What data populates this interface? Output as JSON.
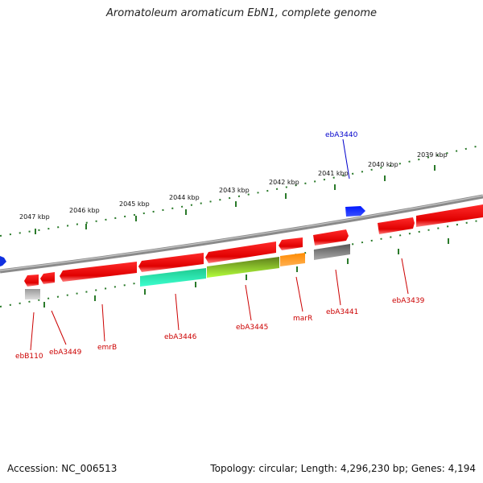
{
  "title": "Aromatoleum aromaticum EbN1, complete genome",
  "footer": {
    "accession": "Accession: NC_006513",
    "topology": "Topology: circular; Length: 4,296,230 bp; Genes: 4,194"
  },
  "scale_labels": [
    "2047 kbp",
    "2046 kbp",
    "2045 kbp",
    "2044 kbp",
    "2043 kbp",
    "2042 kbp",
    "2041 kbp",
    "2040 kbp",
    "2039 kbp"
  ],
  "genes": [
    {
      "name": "ebB110",
      "label": "ebB110",
      "color": "#cc0000"
    },
    {
      "name": "ebA3449",
      "label": "ebA3449",
      "color": "#cc0000"
    },
    {
      "name": "emrB",
      "label": "emrB",
      "color": "#cc0000"
    },
    {
      "name": "ebA3446",
      "label": "ebA3446",
      "color": "#cc0000"
    },
    {
      "name": "ebA3445",
      "label": "ebA3445",
      "color": "#cc0000"
    },
    {
      "name": "marR",
      "label": "marR",
      "color": "#cc0000"
    },
    {
      "name": "ebA3441",
      "label": "ebA3441",
      "color": "#cc0000"
    },
    {
      "name": "ebA3439",
      "label": "ebA3439",
      "color": "#cc0000"
    },
    {
      "name": "ebA3440",
      "label": "ebA3440",
      "color": "#0000cc"
    }
  ],
  "colors": {
    "backbone": "#8a8a8a",
    "forward_gene": "#ee1111",
    "reverse_gene": "#ee1111",
    "tick": "#2a7a2a",
    "blue_gene": "#1030e0"
  }
}
